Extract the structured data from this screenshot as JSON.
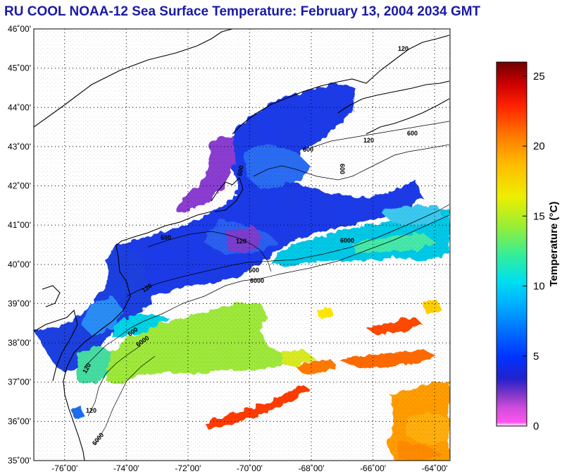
{
  "title": "RU COOL  NOAA-12  Sea Surface Temperature:  February 13, 2004 2034 GMT",
  "map": {
    "lat_labels": [
      "46˚00'",
      "45˚00'",
      "44˚00'",
      "43˚00'",
      "42˚00'",
      "41˚00'",
      "40˚00'",
      "39˚00'",
      "38˚00'",
      "37˚00'",
      "36˚00'",
      "35˚00'"
    ],
    "lon_labels": [
      "-76˚00'",
      "-74˚00'",
      "-72˚00'",
      "-70˚00'",
      "-68˚00'",
      "-66˚00'",
      "-64˚00'"
    ],
    "lat_range": [
      35,
      46
    ],
    "lon_range": [
      -77,
      -63.5
    ],
    "contour_labels": [
      "120",
      "600",
      "120",
      "600",
      "600",
      "120",
      "600",
      "600",
      "6000",
      "120",
      "600",
      "6000",
      "120",
      "600",
      "6000",
      "120",
      "6000"
    ]
  },
  "colorbar": {
    "title": "Temperature (°C)",
    "ticks": [
      "0",
      "5",
      "10",
      "15",
      "20",
      "25"
    ],
    "tick_values": [
      0,
      5,
      10,
      15,
      20,
      25
    ],
    "range": [
      0,
      26
    ],
    "colors": [
      "#ffffff",
      "#ff55ee",
      "#a23cc8",
      "#2222cc",
      "#0033ff",
      "#0077ff",
      "#00b4ff",
      "#00e6e6",
      "#33ee99",
      "#99ee33",
      "#eeee00",
      "#ffbb00",
      "#ff7700",
      "#ff2200",
      "#cc0000",
      "#770000"
    ]
  }
}
